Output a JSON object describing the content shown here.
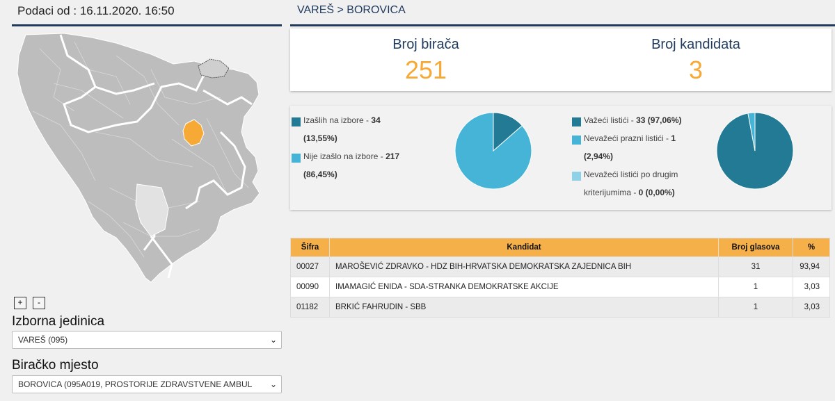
{
  "header": {
    "date_label": "Podaci od : 16.11.2020. 16:50"
  },
  "breadcrumb": "VAREŠ > BOROVICA",
  "map_controls": {
    "zoom_in": "+",
    "zoom_out": "-"
  },
  "filters": {
    "izborna_jedinica_label": "Izborna jedinica",
    "izborna_jedinica_value": "VAREŠ (095)",
    "biracko_mjesto_label": "Biračko mjesto",
    "biracko_mjesto_value": "BOROVICA (095A019, PROSTORIJE ZDRAVSTVENE AMBUL"
  },
  "stats": {
    "voters_label": "Broj birača",
    "voters_value": "251",
    "candidates_label": "Broj kandidata",
    "candidates_value": "3"
  },
  "turnout": {
    "items": [
      {
        "text": "Izašlih na izbore - ",
        "bold": "34",
        "pct": "(13,55%)",
        "value": 34,
        "color": "#237a94"
      },
      {
        "text": "Nije izašlo na izbore - ",
        "bold": "217",
        "pct": "(86,45%)",
        "value": 217,
        "color": "#46b4d6"
      }
    ]
  },
  "ballots": {
    "items": [
      {
        "text": "Važeći listići - ",
        "bold": "33 (97,06%)",
        "value": 33,
        "color": "#237a94"
      },
      {
        "text": "Nevažeći prazni listići - ",
        "bold": "1",
        "pct": "(2,94%)",
        "value": 1,
        "color": "#46b4d6"
      },
      {
        "text": "Nevažeći listići po drugim kriterijumima - ",
        "bold": "0 (0,00%)",
        "value": 0,
        "color": "#8fd1e6"
      }
    ]
  },
  "table": {
    "headers": [
      "Šifra",
      "Kandidat",
      "Broj glasova",
      "%"
    ],
    "rows": [
      {
        "code": "00027",
        "candidate": "MAROŠEVIĆ ZDRAVKO - HDZ BIH-HRVATSKA DEMOKRATSKA ZAJEDNICA BIH",
        "votes": "31",
        "pct": "93,94"
      },
      {
        "code": "00090",
        "candidate": "IMAMAGIĆ ENIDA - SDA-STRANKA DEMOKRATSKE AKCIJE",
        "votes": "1",
        "pct": "3,03"
      },
      {
        "code": "01182",
        "candidate": "BRKIĆ FAHRUDIN - SBB",
        "votes": "1",
        "pct": "3,03"
      }
    ]
  },
  "colors": {
    "accent_orange": "#f6a935",
    "navy": "#1f3a5c",
    "map_highlight": "#f6a935",
    "map_base": "#bdbdbd"
  }
}
